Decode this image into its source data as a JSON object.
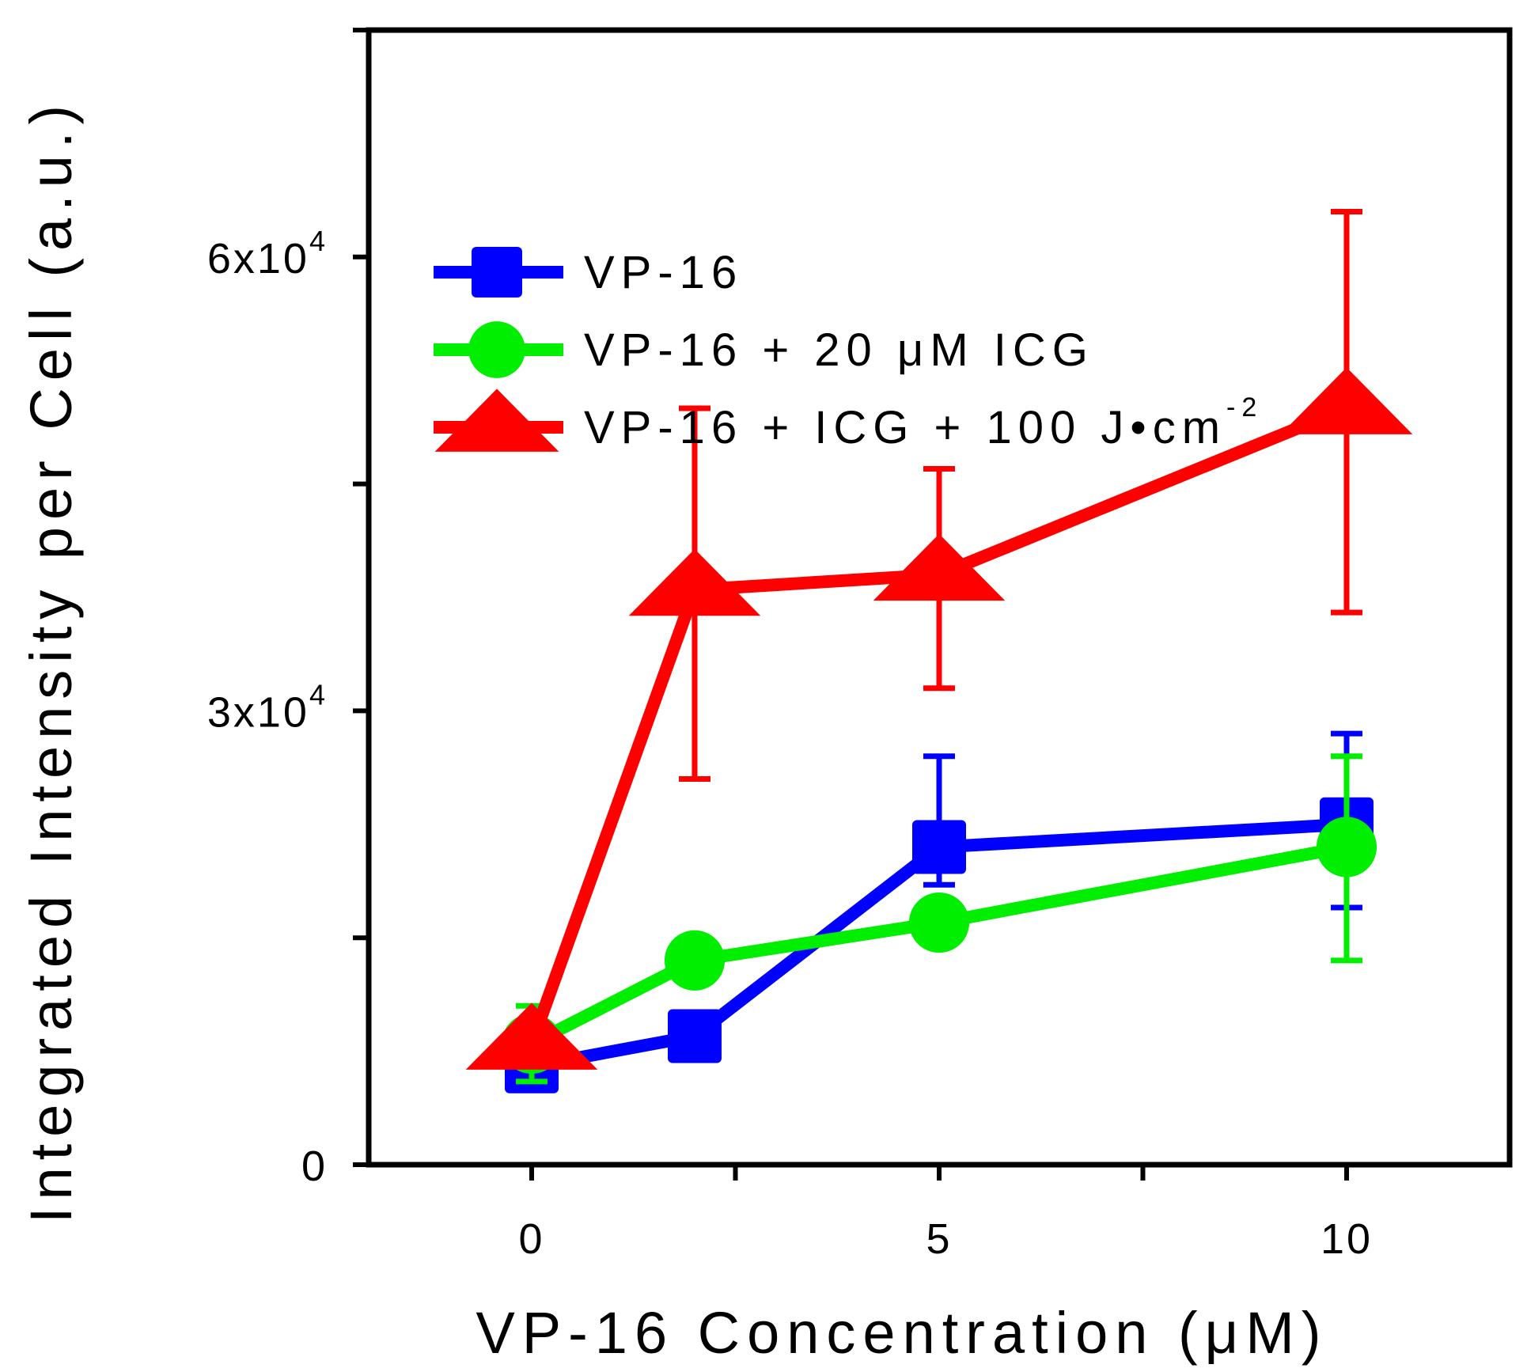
{
  "chart_data": {
    "type": "line",
    "xlabel": "VP-16 Concentration (μM)",
    "ylabel": "Integrated Intensity per Cell (a.u.)",
    "xlim": [
      -2,
      12
    ],
    "ylim": [
      0,
      75000
    ],
    "x_ticks": [
      {
        "value": 0,
        "label": "0"
      },
      {
        "value": 5,
        "label": "5"
      },
      {
        "value": 10,
        "label": "10"
      }
    ],
    "x_minor_ticks": [
      2.5,
      7.5
    ],
    "y_ticks": [
      {
        "value": 0,
        "label": "0",
        "sup": ""
      },
      {
        "value": 30000,
        "label": "3x10",
        "sup": "4"
      },
      {
        "value": 60000,
        "label": "6x10",
        "sup": "4"
      }
    ],
    "y_minor_ticks": [
      15000,
      45000,
      75000
    ],
    "legend_position": "top-left",
    "series": [
      {
        "name": "VP-16",
        "legend_sup": "",
        "color": "#0000ff",
        "marker": "square",
        "x": [
          0,
          2,
          5,
          10
        ],
        "y": [
          6500,
          8500,
          21000,
          22500
        ],
        "err_low": [
          600,
          600,
          2500,
          5500
        ],
        "err_high": [
          600,
          600,
          6000,
          6000
        ]
      },
      {
        "name": "VP-16 + 20 μM ICG",
        "legend_sup": "",
        "color": "#00ee00",
        "marker": "circle",
        "x": [
          0,
          2,
          5,
          10
        ],
        "y": [
          8000,
          13500,
          16000,
          21000
        ],
        "err_low": [
          2500,
          1500,
          1500,
          7500
        ],
        "err_high": [
          2500,
          1500,
          1500,
          6000
        ]
      },
      {
        "name": "VP-16 + ICG + 100 J•cm",
        "legend_sup": "-2",
        "color": "#ff0000",
        "marker": "triangle",
        "x": [
          0,
          2,
          5,
          10
        ],
        "y": [
          8000,
          38000,
          39000,
          50000
        ],
        "err_low": [
          0,
          12500,
          7500,
          13500
        ],
        "err_high": [
          0,
          12000,
          7000,
          13000
        ]
      }
    ]
  }
}
